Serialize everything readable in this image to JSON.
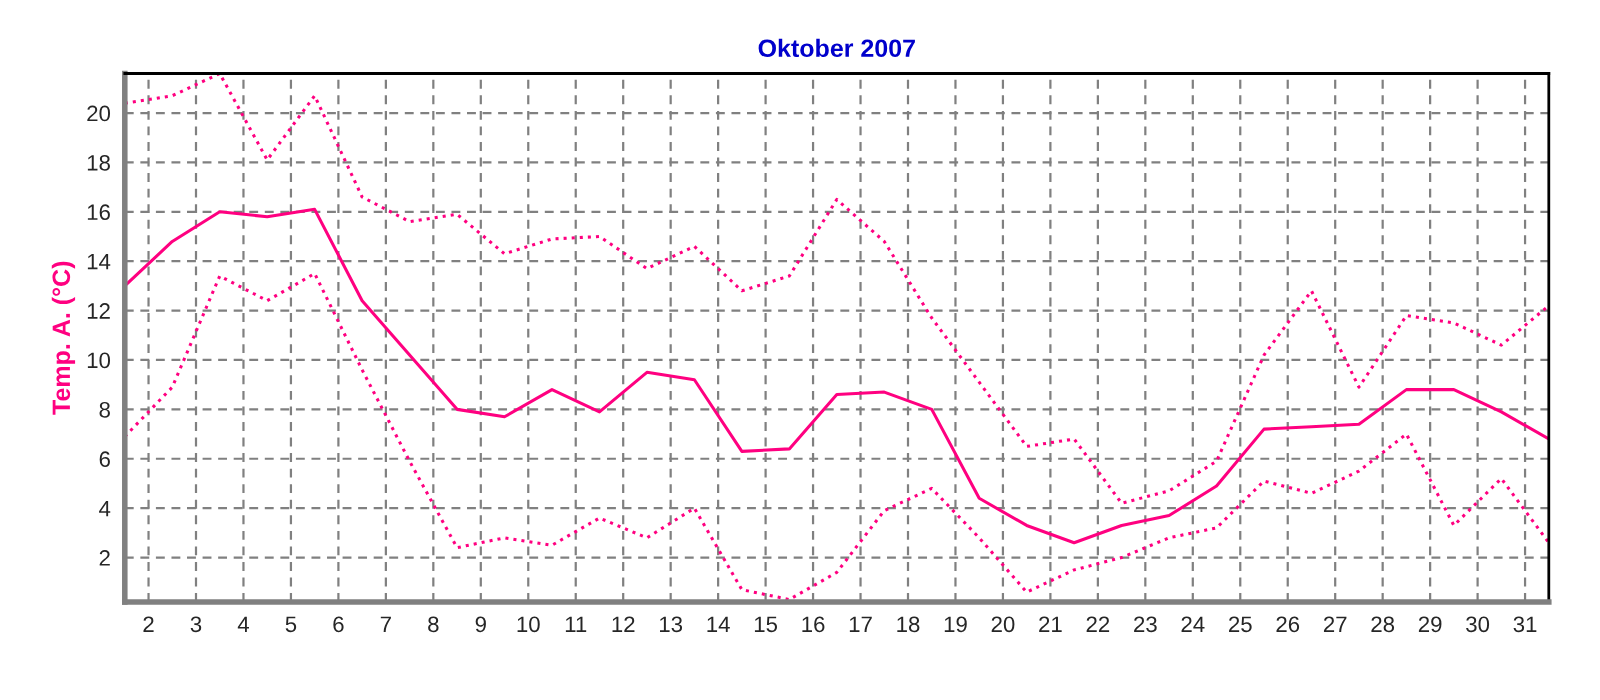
{
  "chart_data": {
    "type": "line",
    "title": "Oktober 2007",
    "ylabel": "Temp. A. (°C)",
    "x": [
      1.5,
      2.5,
      3.5,
      4.5,
      5.5,
      6.5,
      7.5,
      8.5,
      9.5,
      10.5,
      11.5,
      12.5,
      13.5,
      14.5,
      15.5,
      16.5,
      17.5,
      18.5,
      19.5,
      20.5,
      21.5,
      22.5,
      23.5,
      24.5,
      25.5,
      26.5,
      27.5,
      28.5,
      29.5,
      30.5,
      31.5
    ],
    "series": [
      {
        "color": "#ff0080",
        "line_style": "dotted",
        "values": [
          20.4,
          20.7,
          21.6,
          18.1,
          20.7,
          16.6,
          15.6,
          15.9,
          14.3,
          14.9,
          15.0,
          13.7,
          14.6,
          12.8,
          13.4,
          16.5,
          14.8,
          11.7,
          9.1,
          6.5,
          6.8,
          4.2,
          4.7,
          5.9,
          10.2,
          12.8,
          8.9,
          11.8,
          11.5,
          10.6,
          12.2
        ]
      },
      {
        "color": "#ff0080",
        "line_style": "solid",
        "values": [
          13.0,
          14.8,
          16.0,
          15.8,
          16.1,
          12.4,
          10.2,
          8.0,
          7.7,
          8.8,
          7.9,
          9.5,
          9.2,
          6.3,
          6.4,
          8.6,
          8.7,
          8.0,
          4.4,
          3.3,
          2.6,
          3.3,
          3.7,
          4.9,
          7.2,
          7.3,
          7.4,
          8.8,
          8.8,
          7.9,
          6.8
        ]
      },
      {
        "color": "#ff0080",
        "line_style": "dotted",
        "values": [
          6.9,
          8.9,
          13.4,
          12.4,
          13.5,
          9.6,
          5.9,
          2.4,
          2.8,
          2.5,
          3.6,
          2.8,
          4.0,
          0.7,
          0.3,
          1.4,
          3.9,
          4.8,
          2.8,
          0.6,
          1.5,
          2.0,
          2.8,
          3.2,
          5.1,
          4.6,
          5.5,
          7.0,
          3.3,
          5.2,
          2.6
        ]
      }
    ],
    "xlim": [
      1.5,
      31.5
    ],
    "xticks": [
      2,
      3,
      4,
      5,
      6,
      7,
      8,
      9,
      10,
      11,
      12,
      13,
      14,
      15,
      16,
      17,
      18,
      19,
      20,
      21,
      22,
      23,
      24,
      25,
      26,
      27,
      28,
      29,
      30,
      31
    ],
    "ylim": [
      0.2,
      21.6
    ],
    "yticks": [
      2,
      4,
      6,
      8,
      10,
      12,
      14,
      16,
      18,
      20
    ],
    "grid": true
  }
}
